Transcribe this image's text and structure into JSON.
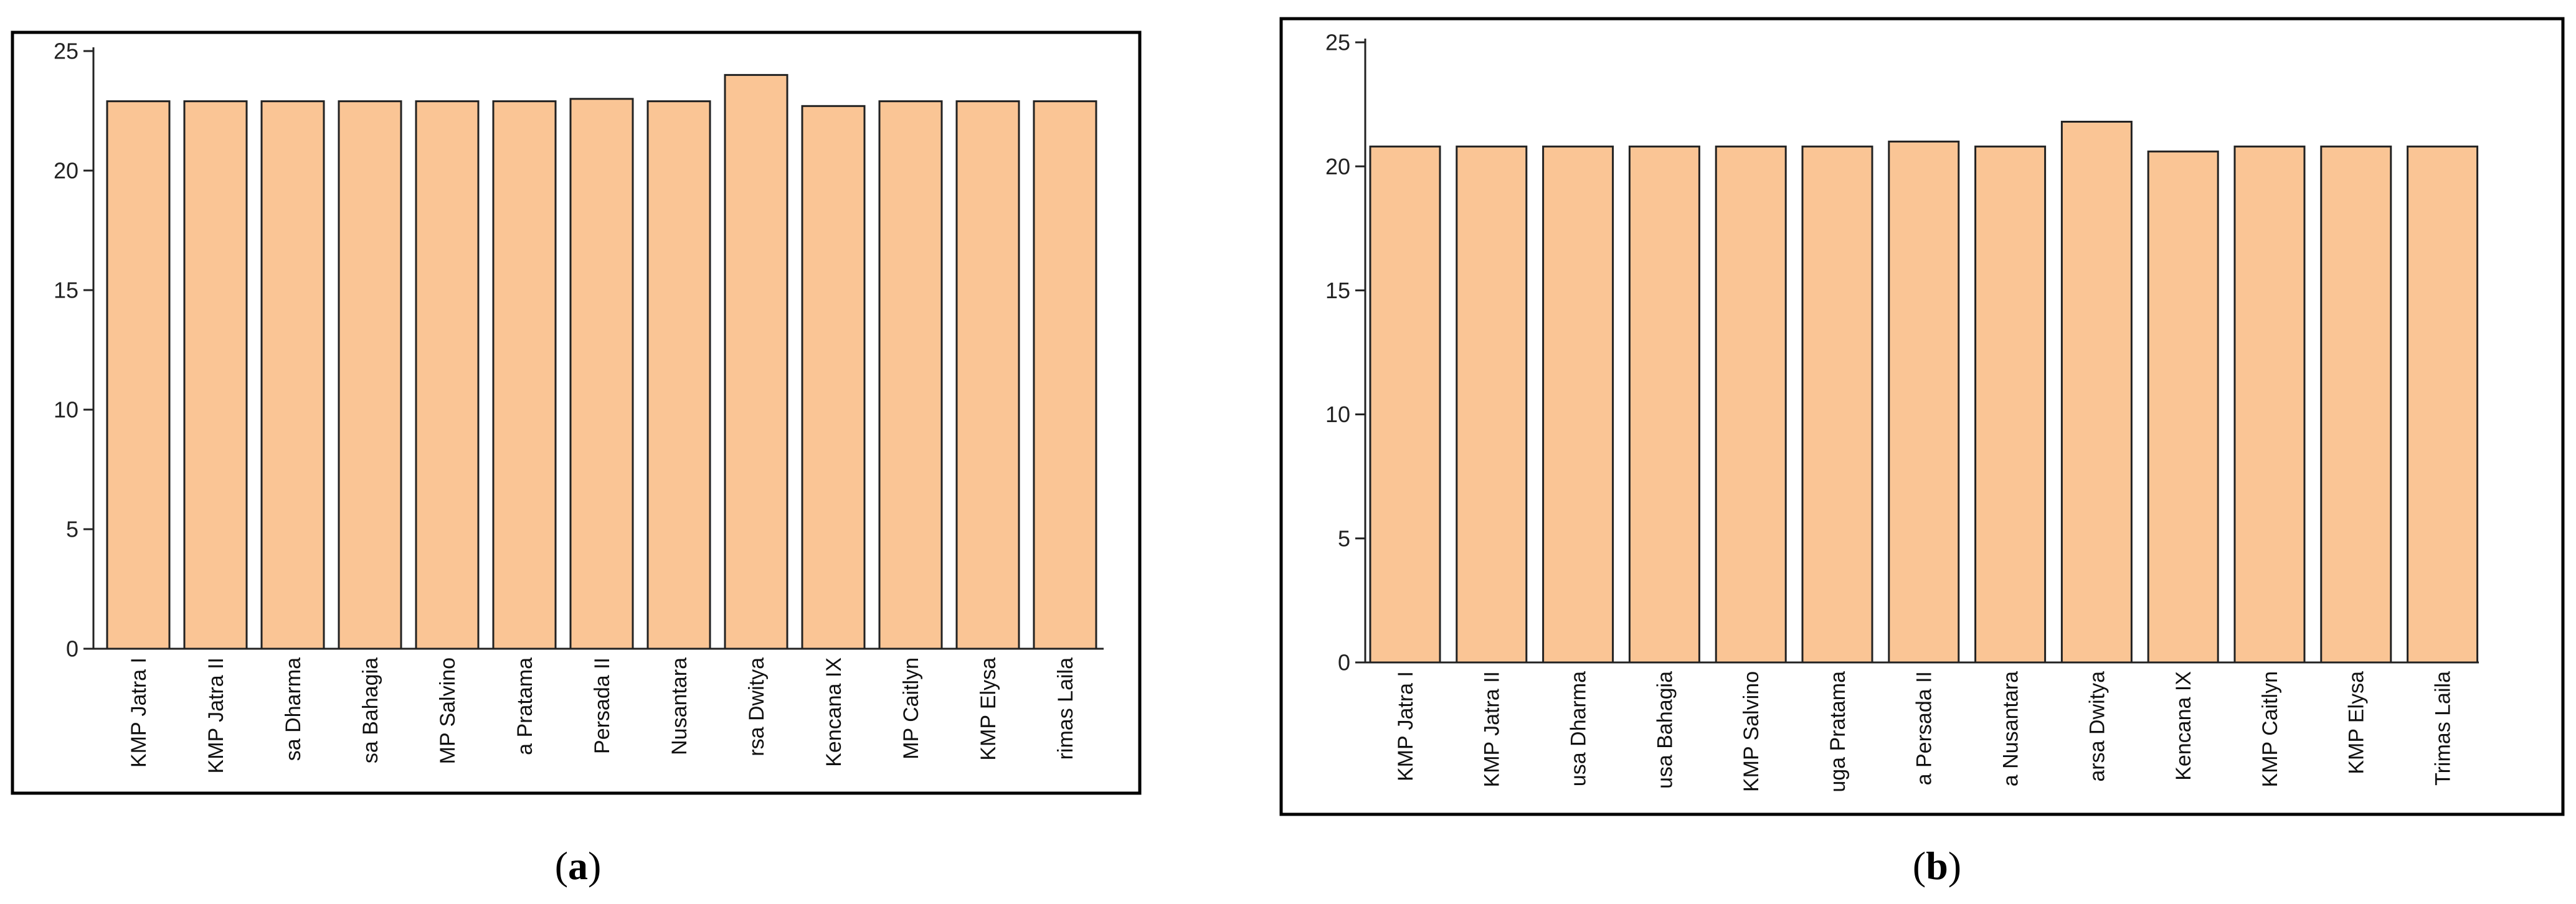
{
  "figure": {
    "panel_labels": [
      "(a)",
      "(b)"
    ],
    "label_letters": [
      "a",
      "b"
    ]
  },
  "colors": {
    "bar_fill": "#FAC595",
    "bar_stroke": "#222222",
    "axis": "#222222",
    "frame": "#000000"
  },
  "chart_data": [
    {
      "type": "bar",
      "panel": "(a)",
      "title": "",
      "xlabel": "",
      "ylabel": "",
      "ylim": [
        0,
        25
      ],
      "yticks": [
        0,
        5,
        10,
        15,
        20,
        25
      ],
      "grid": false,
      "categories": [
        "KMP Jatra I",
        "KMP Jatra II",
        "sa Dharma",
        "sa Bahagia",
        "MP Salvino",
        "a Pratama",
        "Persada II",
        "Nusantara",
        "rsa Dwitya",
        "Kencana IX",
        "MP Caitlyn",
        "KMP Elysa",
        "rimas Laila"
      ],
      "values": [
        22.9,
        22.9,
        22.9,
        22.9,
        22.9,
        22.9,
        23.0,
        22.9,
        24.0,
        22.7,
        22.9,
        22.9,
        22.9
      ]
    },
    {
      "type": "bar",
      "panel": "(b)",
      "title": "",
      "xlabel": "",
      "ylabel": "",
      "ylim": [
        0,
        25
      ],
      "yticks": [
        0,
        5,
        10,
        15,
        20,
        25
      ],
      "grid": false,
      "categories": [
        "KMP Jatra I",
        "KMP Jatra II",
        "usa Dharma",
        "usa Bahagia",
        "KMP Salvino",
        "uga Pratama",
        "a Persada II",
        "a Nusantara",
        "arsa Dwitya",
        "Kencana IX",
        "KMP Caitlyn",
        "KMP Elysa",
        "Trimas Laila"
      ],
      "values": [
        20.8,
        20.8,
        20.8,
        20.8,
        20.8,
        20.8,
        21.0,
        20.8,
        21.8,
        20.6,
        20.8,
        20.8,
        20.8
      ]
    }
  ]
}
